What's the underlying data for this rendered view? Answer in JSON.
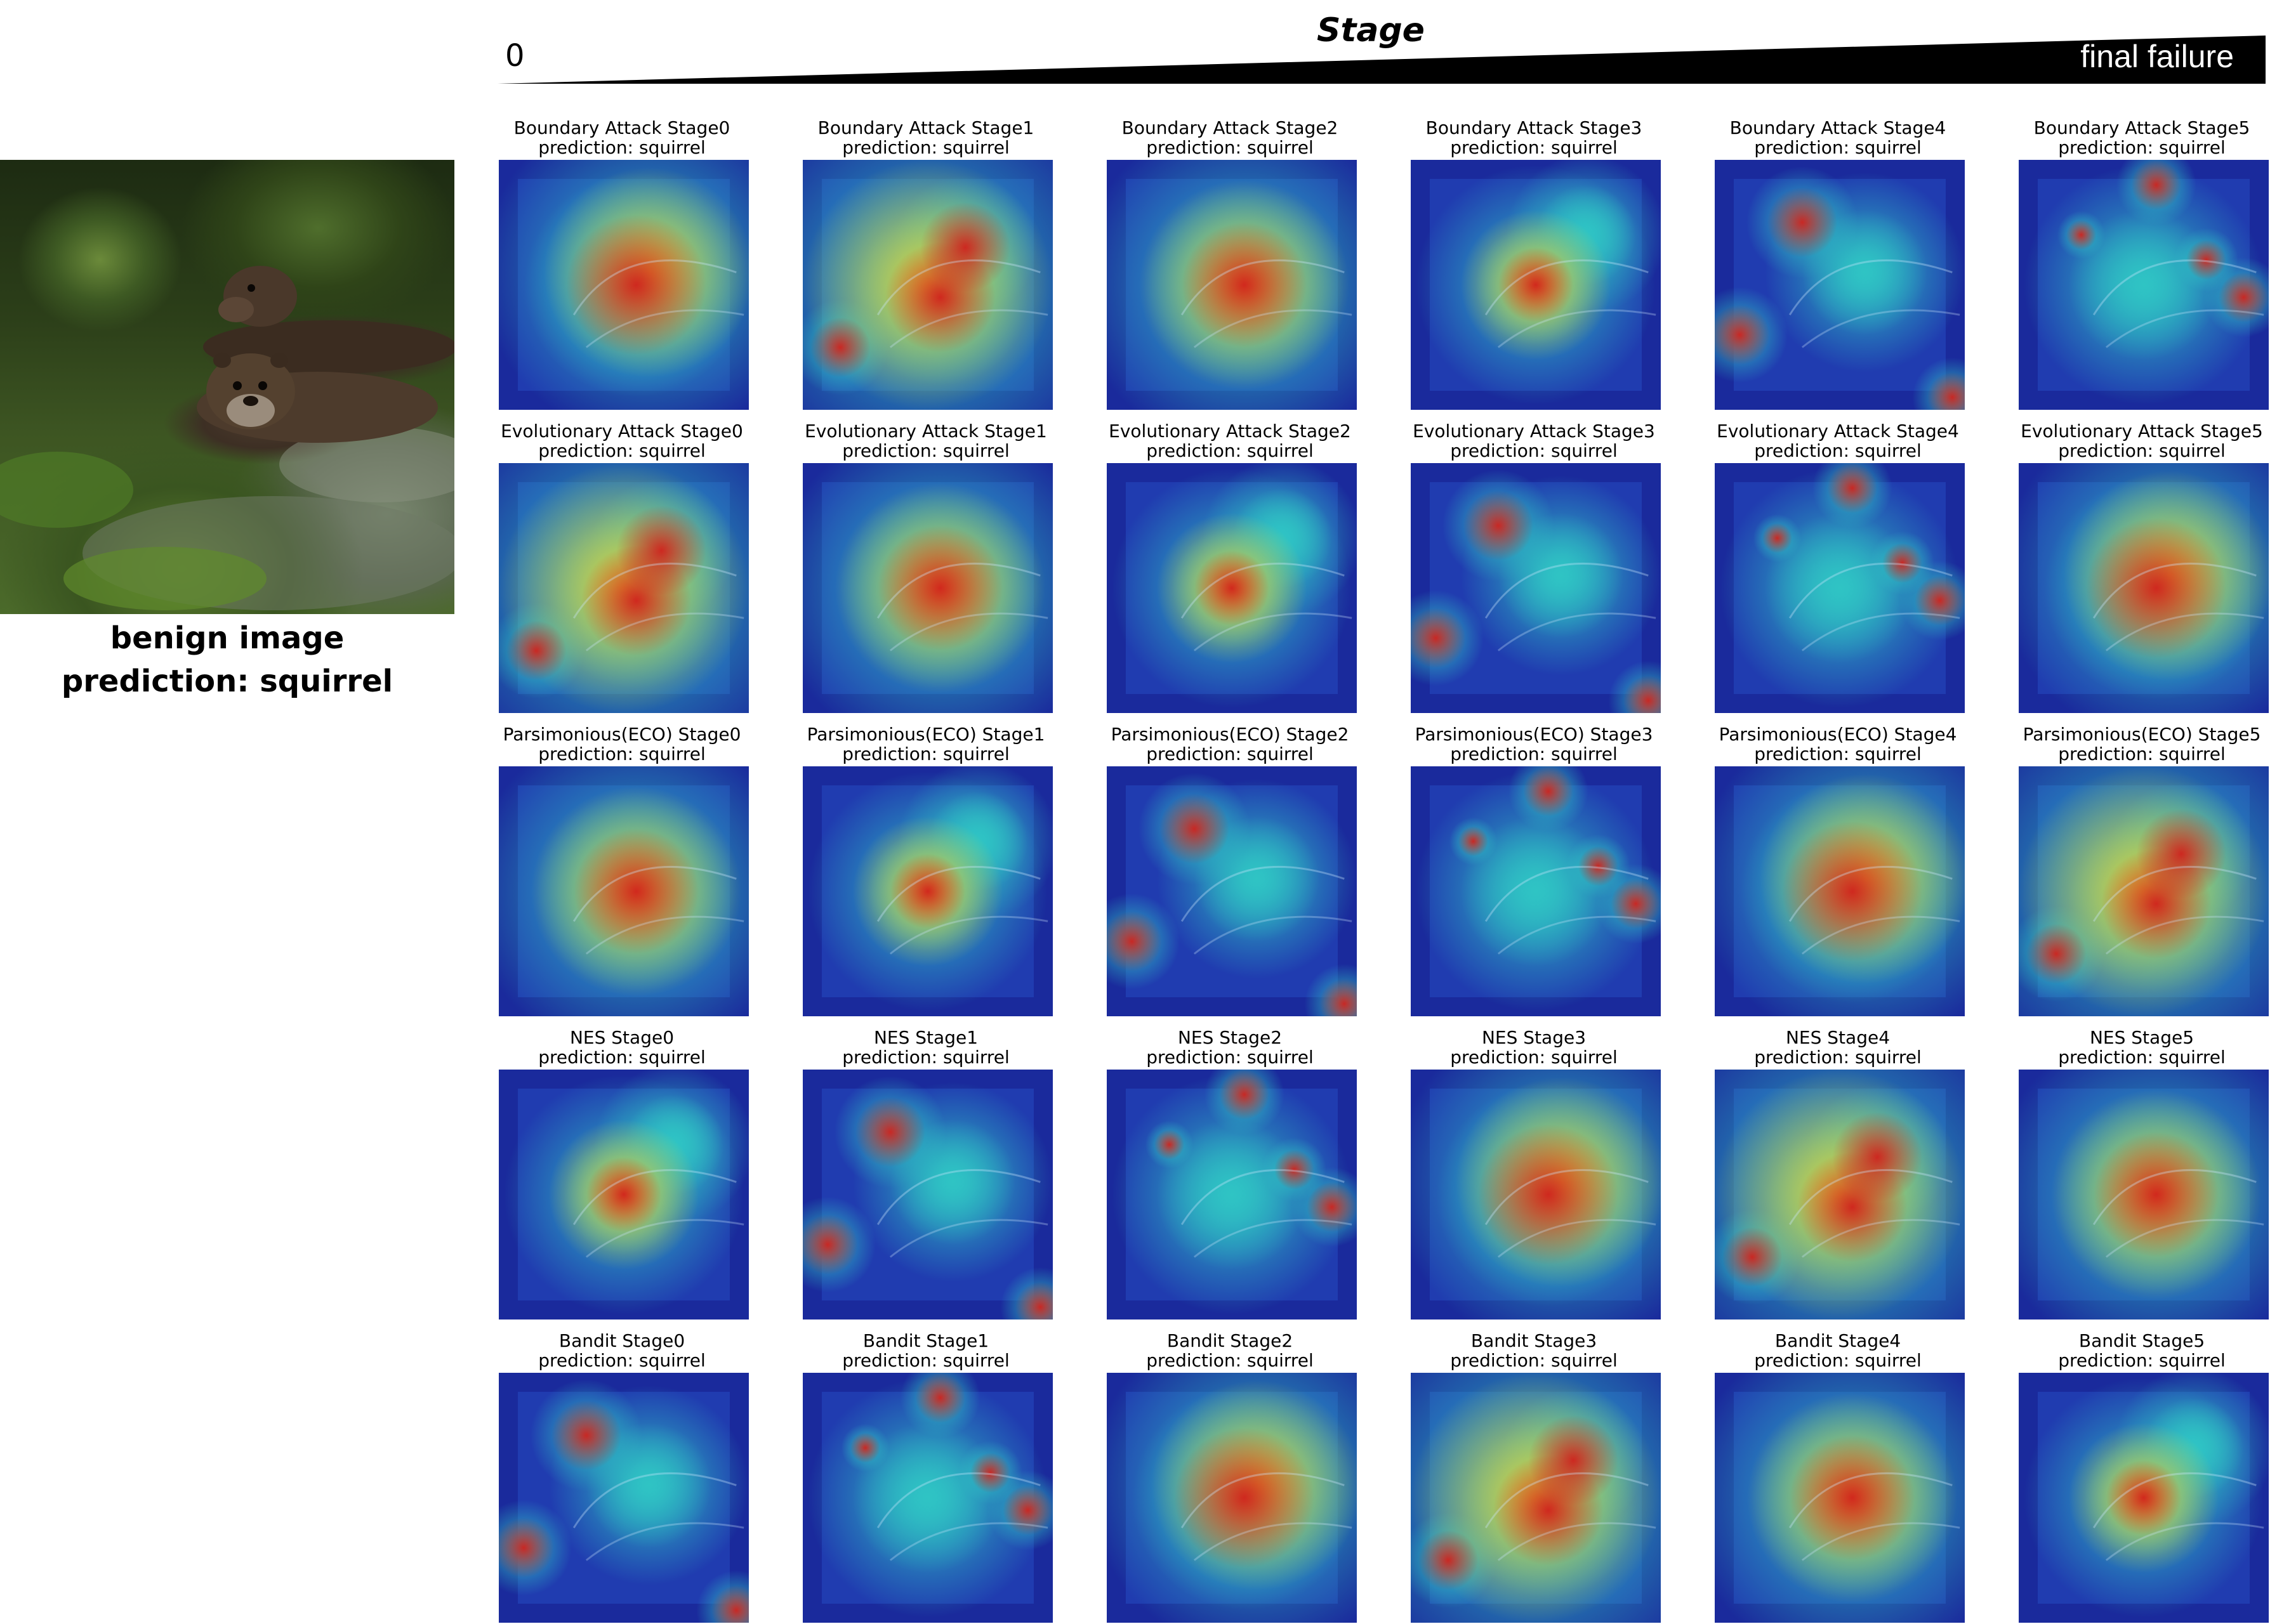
{
  "stage_axis": {
    "title": "Stage",
    "start_label": "0",
    "end_label": "final failure"
  },
  "benign": {
    "label": "benign image",
    "prediction": "prediction: squirrel"
  },
  "columns": [
    "Stage0",
    "Stage1",
    "Stage2",
    "Stage3",
    "Stage4",
    "Stage5"
  ],
  "rows": [
    {
      "attack": "Boundary Attack",
      "cells": [
        {
          "title": "Boundary Attack Stage0",
          "prediction": "prediction: squirrel"
        },
        {
          "title": "Boundary Attack Stage1",
          "prediction": "prediction: squirrel"
        },
        {
          "title": "Boundary Attack Stage2",
          "prediction": "prediction: squirrel"
        },
        {
          "title": "Boundary Attack Stage3",
          "prediction": "prediction: squirrel"
        },
        {
          "title": "Boundary Attack Stage4",
          "prediction": "prediction: squirrel"
        },
        {
          "title": "Boundary Attack Stage5",
          "prediction": "prediction: squirrel"
        }
      ]
    },
    {
      "attack": "Evolutionary Attack",
      "cells": [
        {
          "title": "Evolutionary Attack Stage0",
          "prediction": "prediction: squirrel"
        },
        {
          "title": "Evolutionary Attack Stage1",
          "prediction": "prediction: squirrel"
        },
        {
          "title": "Evolutionary Attack Stage2",
          "prediction": "prediction: squirrel"
        },
        {
          "title": "Evolutionary Attack Stage3",
          "prediction": "prediction: squirrel"
        },
        {
          "title": "Evolutionary Attack Stage4",
          "prediction": "prediction: squirrel"
        },
        {
          "title": "Evolutionary Attack Stage5",
          "prediction": "prediction: squirrel"
        }
      ]
    },
    {
      "attack": "Parsimonious(ECO)",
      "cells": [
        {
          "title": "Parsimonious(ECO) Stage0",
          "prediction": "prediction: squirrel"
        },
        {
          "title": "Parsimonious(ECO) Stage1",
          "prediction": "prediction: squirrel"
        },
        {
          "title": "Parsimonious(ECO) Stage2",
          "prediction": "prediction: squirrel"
        },
        {
          "title": "Parsimonious(ECO) Stage3",
          "prediction": "prediction: squirrel"
        },
        {
          "title": "Parsimonious(ECO) Stage4",
          "prediction": "prediction: squirrel"
        },
        {
          "title": "Parsimonious(ECO) Stage5",
          "prediction": "prediction: squirrel"
        }
      ]
    },
    {
      "attack": "NES",
      "cells": [
        {
          "title": "NES Stage0",
          "prediction": "prediction: squirrel"
        },
        {
          "title": "NES Stage1",
          "prediction": "prediction: squirrel"
        },
        {
          "title": "NES Stage2",
          "prediction": "prediction: squirrel"
        },
        {
          "title": "NES Stage3",
          "prediction": "prediction: squirrel"
        },
        {
          "title": "NES Stage4",
          "prediction": "prediction: squirrel"
        },
        {
          "title": "NES Stage5",
          "prediction": "prediction: squirrel"
        }
      ]
    },
    {
      "attack": "Bandit",
      "cells": [
        {
          "title": "Bandit Stage0",
          "prediction": "prediction: squirrel"
        },
        {
          "title": "Bandit Stage1",
          "prediction": "prediction: squirrel"
        },
        {
          "title": "Bandit Stage2",
          "prediction": "prediction: squirrel"
        },
        {
          "title": "Bandit Stage3",
          "prediction": "prediction: squirrel"
        },
        {
          "title": "Bandit Stage4",
          "prediction": "prediction: squirrel"
        },
        {
          "title": "Bandit Stage5",
          "prediction": "prediction: squirrel"
        }
      ]
    }
  ],
  "heatmap_colors": {
    "background": "#1a2a9c",
    "low": "#2f5fd8",
    "mid": "#2fc4c4",
    "high": "#e8d030",
    "peak": "#d0201c"
  }
}
